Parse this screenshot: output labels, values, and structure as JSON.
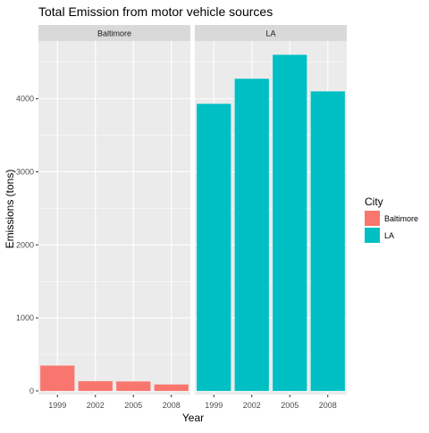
{
  "chart_data": {
    "type": "bar",
    "title": "Total Emission from motor vehicle sources",
    "xlabel": "Year",
    "ylabel": "Emissions (tons)",
    "categories": [
      "1999",
      "2002",
      "2005",
      "2008"
    ],
    "ylim": [
      -50,
      4790
    ],
    "yticks": [
      0,
      1000,
      2000,
      3000,
      4000
    ],
    "grid": true,
    "facets": [
      "Baltimore",
      "LA"
    ],
    "series": [
      {
        "name": "Baltimore",
        "color": "#F8766D",
        "values": [
          347,
          134,
          130,
          89
        ]
      },
      {
        "name": "LA",
        "color": "#00BFC4",
        "values": [
          3931,
          4274,
          4602,
          4101
        ]
      }
    ],
    "legend": {
      "title": "City",
      "placement": "right",
      "entries": [
        "Baltimore",
        "LA"
      ]
    }
  }
}
